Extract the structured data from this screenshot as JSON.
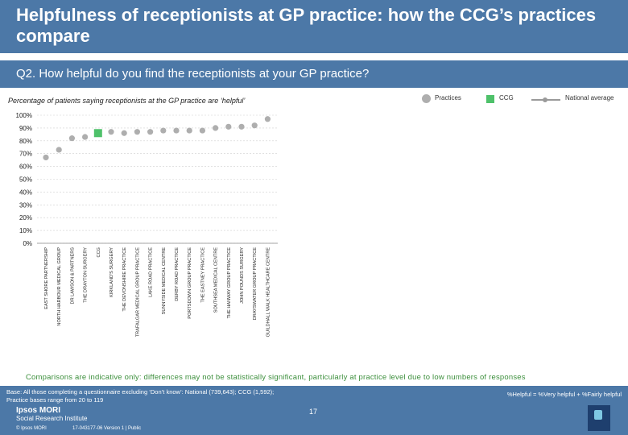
{
  "title": "Helpfulness of receptionists at GP practice: how the CCG’s practices compare",
  "question": "Q2. How helpful do you find the receptionists at your GP practice?",
  "subtitle": "Percentage of patients saying receptionists at the GP practice are ‘helpful’",
  "legend": {
    "practices": "Practices",
    "ccg": "CCG",
    "national": "National average"
  },
  "colors": {
    "header": "#4c78a7",
    "practice_point": "#aeaeae",
    "ccg_point": "#4ec16a",
    "note": "#3c8f3c"
  },
  "chart_data": {
    "type": "scatter",
    "title": "",
    "xlabel": "",
    "ylabel": "",
    "ylim": [
      0,
      100
    ],
    "yticks": [
      "0%",
      "10%",
      "20%",
      "30%",
      "40%",
      "50%",
      "60%",
      "70%",
      "80%",
      "90%",
      "100%"
    ],
    "categories": [
      "EAST SHORE PARTNERSHIP",
      "NORTH HARBOUR MEDICAL GROUP",
      "DR LAWSON & PARTNERS",
      "THE DRAYTON SURGERY",
      "CCG",
      "KIRKLAND'S SURGERY",
      "THE DEVONSHIRE PRACTICE",
      "TRAFALGAR MEDICAL GROUP PRACTICE",
      "LAKE ROAD PRACTICE",
      "SUNNYSIDE MEDICAL CENTRE",
      "DERBY ROAD PRACTICE",
      "PORTSDOWN GROUP PRACTICE",
      "THE EASTNEY PRACTICE",
      "SOUTHSEA MEDICAL CENTRE",
      "THE HANWAY GROUP PRACTICE",
      "JOHN POUNDS SURGERY",
      "DRAYSWATER GROUP PRACTICE",
      "GUILDHALL WALK HEALTHCARE CENTRE"
    ],
    "values": [
      67,
      73,
      82,
      83,
      86,
      87,
      86,
      87,
      87,
      88,
      88,
      88,
      88,
      90,
      91,
      91,
      92,
      97
    ],
    "highlight": "CCG"
  },
  "note": "Comparisons are indicative only: differences may not be statistically significant, particularly at practice level due to low numbers of responses",
  "footer": {
    "base_line1": "Base: All those completing a questionnaire excluding ‘Don’t know’: National (739,643); CCG (1,592);",
    "base_line2": "Practice bases range from 20 to 119",
    "helpful_def": "%Helpful = %Very helpful + %Fairly helpful",
    "page": "17",
    "logo_name": "Ipsos MORI",
    "logo_sub": "Social Research Institute",
    "copyright": "© Ipsos MORI",
    "job": "17-043177-06 Version 1 | Public"
  }
}
